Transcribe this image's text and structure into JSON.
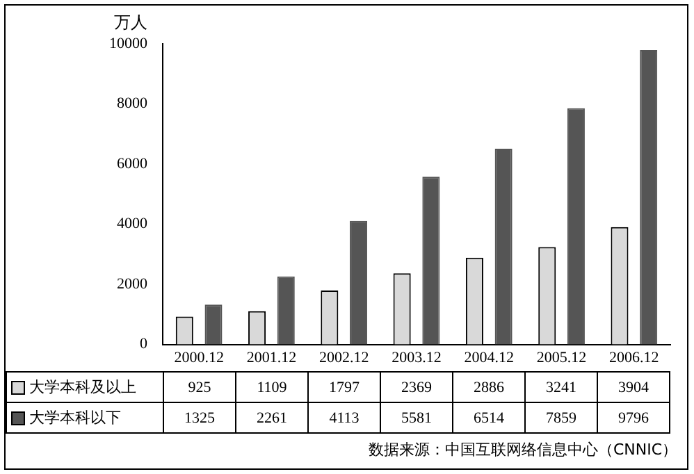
{
  "chart_data": {
    "type": "bar",
    "ylabel": "万人",
    "categories": [
      "2000.12",
      "2001.12",
      "2002.12",
      "2003.12",
      "2004.12",
      "2005.12",
      "2006.12"
    ],
    "series": [
      {
        "name": "大学本科及以上",
        "color": "#d9d9d9",
        "values": [
          925,
          1109,
          1797,
          2369,
          2886,
          3241,
          3904
        ]
      },
      {
        "name": "大学本科以下",
        "color": "#555555",
        "values": [
          1325,
          2261,
          4113,
          5581,
          6514,
          7859,
          9796
        ]
      }
    ],
    "ylim": [
      0,
      10000
    ],
    "yticks": [
      0,
      2000,
      4000,
      6000,
      8000,
      10000
    ],
    "grid": false,
    "legend": "bottom left",
    "data_labels": true,
    "annotations": [
      "数据来源：中国互联网络信息中心（CNNIC）"
    ]
  }
}
